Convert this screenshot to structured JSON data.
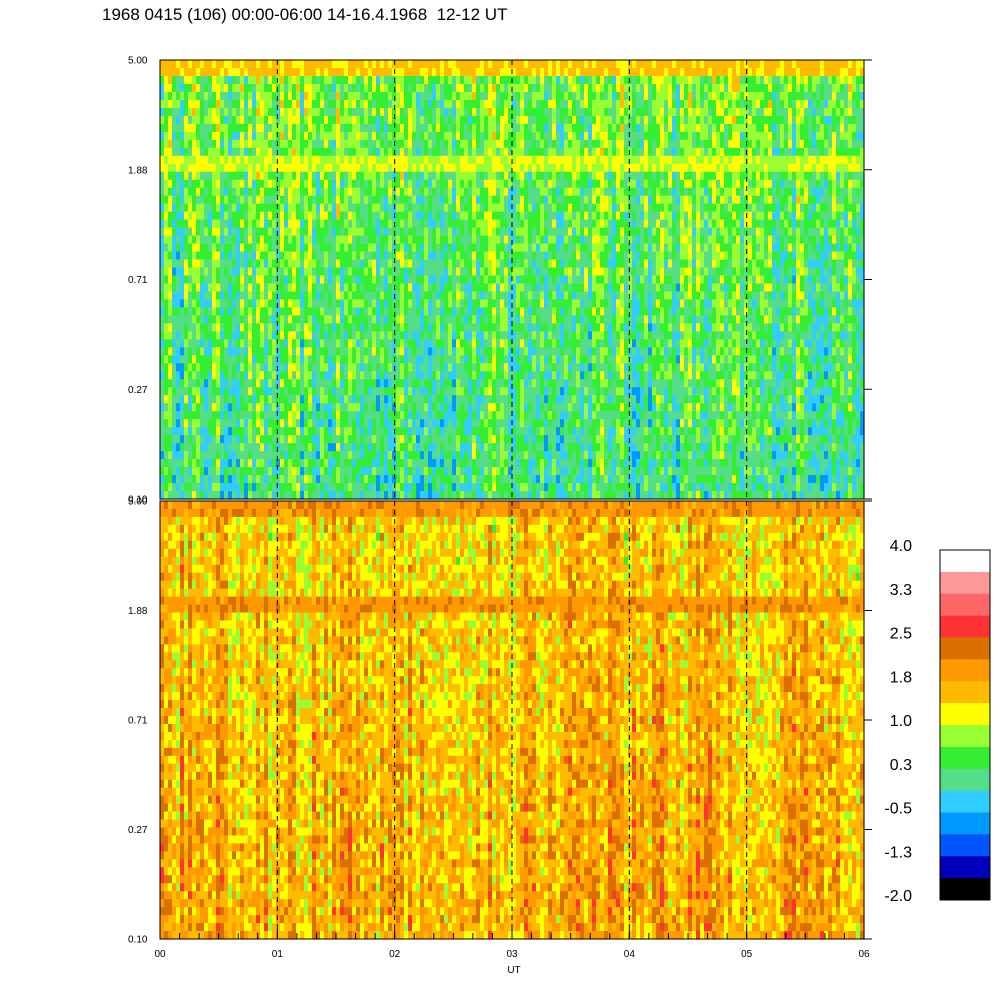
{
  "title": "1968 0415 (106) 00:00-06:00 14-16.4.1968  12-12 UT",
  "chart_data": [
    {
      "type": "heatmap",
      "panel": "top",
      "x_range": [
        0,
        6
      ],
      "y_ticks": [
        "5.00",
        "1.88",
        "0.71",
        "0.27",
        "0.10"
      ],
      "y_range": [
        0.1,
        5.0
      ],
      "y_scale": "log",
      "dominant_level": 0.3,
      "bands": [
        {
          "y": 4.6,
          "level": 1.5
        },
        {
          "y": 2.0,
          "level": 1.0
        }
      ]
    },
    {
      "type": "heatmap",
      "panel": "bottom",
      "x_range": [
        0,
        6
      ],
      "y_ticks": [
        "5.00",
        "1.88",
        "0.71",
        "0.27",
        "0.10"
      ],
      "y_range": [
        0.1,
        5.0
      ],
      "y_scale": "log",
      "dominant_level": 1.6,
      "bands": [
        {
          "y": 4.6,
          "level": 2.0
        },
        {
          "y": 2.0,
          "level": 2.0
        }
      ]
    }
  ],
  "x_ticks": [
    "00",
    "01",
    "02",
    "03",
    "04",
    "05",
    "06"
  ],
  "xlabel": "UT",
  "colorbar": {
    "labels": [
      "4.0",
      "3.3",
      "2.5",
      "1.8",
      "1.0",
      "0.3",
      "-0.5",
      "-1.3",
      "-2.0"
    ],
    "colors": [
      "#ffffff",
      "#ff9999",
      "#ff6666",
      "#ff3333",
      "#d97000",
      "#ff9900",
      "#ffbb00",
      "#ffff00",
      "#99ff33",
      "#33ee33",
      "#55dd88",
      "#33ccff",
      "#0099ff",
      "#0055ff",
      "#0000bb",
      "#000000"
    ]
  }
}
